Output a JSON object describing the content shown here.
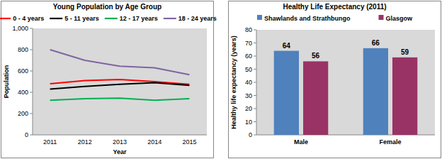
{
  "chart_data": [
    {
      "type": "line",
      "title": "Young Population by Age Group",
      "x_label": "Year",
      "y_label": "Population",
      "categories": [
        "2011",
        "2012",
        "2013",
        "2014",
        "2015"
      ],
      "series": [
        {
          "name": "0 - 4 years",
          "color": "#ff0000",
          "values": [
            480,
            510,
            520,
            500,
            475
          ]
        },
        {
          "name": "5 - 11 years",
          "color": "#000000",
          "values": [
            430,
            455,
            475,
            490,
            465
          ]
        },
        {
          "name": "12 - 17 years",
          "color": "#00b050",
          "values": [
            325,
            340,
            345,
            325,
            340
          ]
        },
        {
          "name": "18 - 24 years",
          "color": "#8064a2",
          "values": [
            800,
            700,
            645,
            630,
            565
          ]
        }
      ],
      "ylim": [
        0,
        1000
      ],
      "yticks": [
        0,
        200,
        400,
        600,
        800,
        {
          "value": 1000,
          "label": "1,000"
        }
      ],
      "grid": false,
      "legend": "top"
    },
    {
      "type": "bar",
      "title": "Healthy Life Expectancy (2011)",
      "y_label": "Healthy life expectancy (years)",
      "categories": [
        "Male",
        "Female"
      ],
      "series": [
        {
          "name": "Shawlands and Strathbungo",
          "color": "#4f81bd",
          "values": [
            64,
            66
          ]
        },
        {
          "name": "Glasgow",
          "color": "#993366",
          "values": [
            56,
            59
          ]
        }
      ],
      "ylim": [
        0,
        80
      ],
      "yticks": [
        0,
        10,
        20,
        30,
        40,
        50,
        60,
        70,
        80
      ],
      "grid": false,
      "legend": "top",
      "data_labels": true
    }
  ]
}
